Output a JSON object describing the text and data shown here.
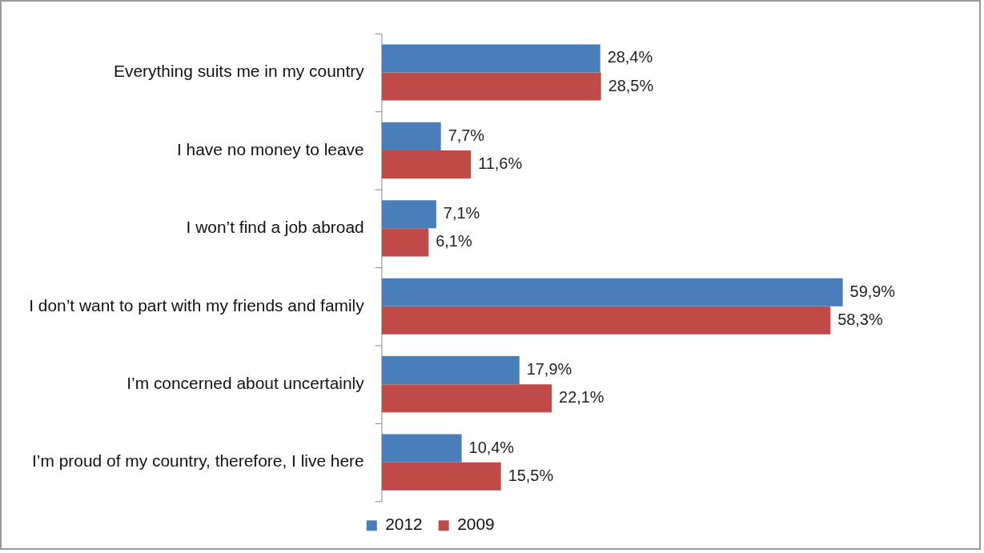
{
  "chart_data": {
    "type": "bar",
    "orientation": "horizontal",
    "categories": [
      "Everything suits me in my country",
      "I have no money to leave",
      "I won’t find a job abroad",
      "I don’t want to part with my friends and family",
      "I’m concerned about uncertainly",
      "I’m proud of my country, therefore, I live here"
    ],
    "series": [
      {
        "name": "2012",
        "color": "#4a7ebb",
        "values": [
          28.4,
          7.7,
          7.1,
          59.9,
          17.9,
          10.4
        ],
        "value_labels": [
          "28,4%",
          "7,7%",
          "7,1%",
          "59,9%",
          "17,9%",
          "10,4%"
        ]
      },
      {
        "name": "2009",
        "color": "#be4b48",
        "values": [
          28.5,
          11.6,
          6.1,
          58.3,
          22.1,
          15.5
        ],
        "value_labels": [
          "28,5%",
          "11,6%",
          "6,1%",
          "58,3%",
          "22,1%",
          "15,5%"
        ]
      }
    ],
    "tick_labels": "y",
    "grid": false,
    "legend": "bottom"
  }
}
